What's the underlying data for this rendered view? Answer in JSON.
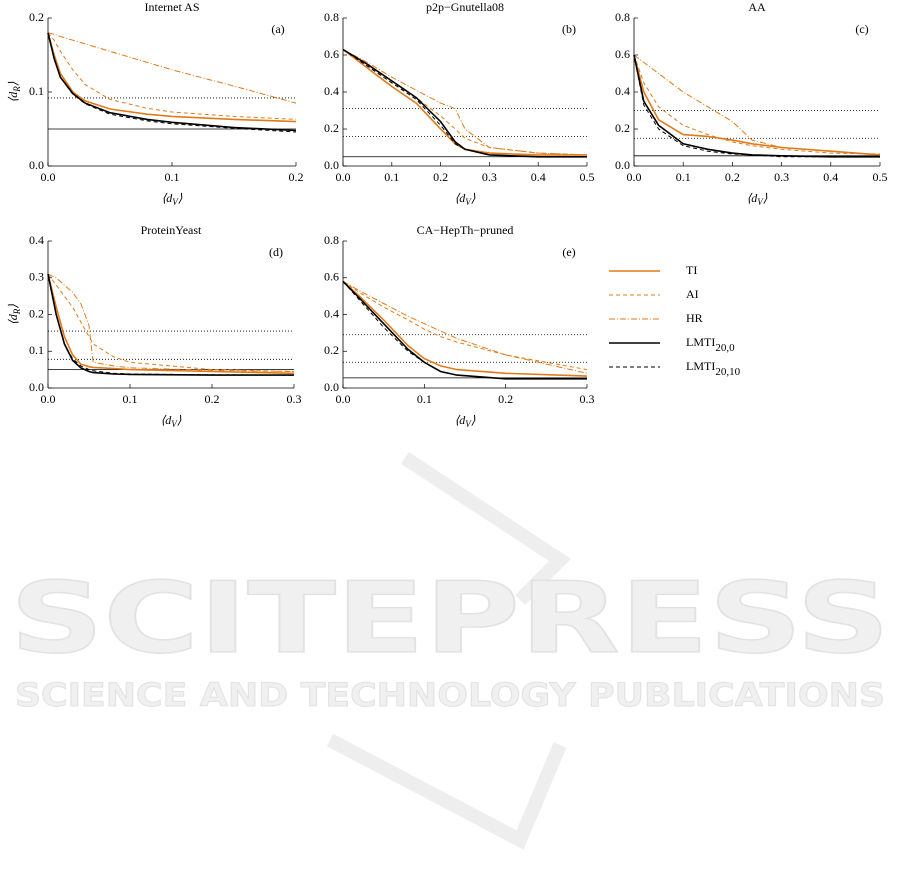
{
  "legend": [
    {
      "name": "TI",
      "color": "#e07b1a",
      "dash": "none",
      "width": 1.6
    },
    {
      "name": "AI",
      "color": "#e07b1a",
      "dash": "4,3",
      "width": 1
    },
    {
      "name": "HR",
      "color": "#e07b1a",
      "dash": "6,2,1,2",
      "width": 1
    },
    {
      "name": "LMTI",
      "name_sub": "20,0",
      "color": "#000000",
      "dash": "none",
      "width": 1.6
    },
    {
      "name": "LMTI",
      "name_sub": "20,10",
      "color": "#000000",
      "dash": "4,3",
      "width": 1
    }
  ],
  "chart_data": [
    {
      "type": "line",
      "title": "Internet AS",
      "panel_label": "(a)",
      "ylabel_pre": "⟨d",
      "ylabel_sub": "R",
      "ylabel_post": "⟩",
      "xlabel_pre": "⟨d",
      "xlabel_sub": "V",
      "xlabel_post": "⟩",
      "xlim": [
        0,
        0.2
      ],
      "xticks": [
        {
          "value": 0,
          "label": "0.0"
        },
        0.1,
        0.2
      ],
      "ylim": [
        0,
        0.2
      ],
      "yticks": [
        {
          "value": 0,
          "label": "0.0"
        },
        0.1,
        0.2
      ],
      "x": [
        0,
        0.005,
        0.01,
        0.02,
        0.03,
        0.05,
        0.08,
        0.1,
        0.15,
        0.2
      ],
      "series": [
        {
          "values": [
            0.18,
            0.15,
            0.125,
            0.1,
            0.088,
            0.077,
            0.07,
            0.067,
            0.063,
            0.06
          ]
        },
        {
          "values": [
            0.18,
            0.17,
            0.155,
            0.13,
            0.11,
            0.09,
            0.078,
            0.073,
            0.067,
            0.063
          ]
        },
        {
          "values": [
            0.18,
            0.178,
            0.175,
            0.17,
            0.165,
            0.155,
            0.14,
            0.13,
            0.108,
            0.085
          ]
        },
        {
          "values": [
            0.18,
            0.145,
            0.12,
            0.098,
            0.085,
            0.072,
            0.063,
            0.059,
            0.052,
            0.048
          ]
        },
        {
          "values": [
            0.18,
            0.145,
            0.12,
            0.097,
            0.084,
            0.07,
            0.061,
            0.057,
            0.051,
            0.046
          ]
        }
      ],
      "hlines": [
        {
          "value": 0.092,
          "style": "dotted"
        },
        {
          "value": 0.05,
          "style": "solid"
        }
      ]
    },
    {
      "type": "line",
      "title": "p2p−Gnutella08",
      "panel_label": "(b)",
      "xlabel_pre": "⟨d",
      "xlabel_sub": "V",
      "xlabel_post": "⟩",
      "xlim": [
        0,
        0.5
      ],
      "xticks": [
        {
          "value": 0,
          "label": "0.0"
        },
        0.1,
        0.2,
        0.3,
        0.4,
        0.5
      ],
      "ylim": [
        0,
        0.8
      ],
      "yticks": [
        {
          "value": 0,
          "label": "0.0"
        },
        0.2,
        0.4,
        0.6,
        0.8
      ],
      "x": [
        0,
        0.05,
        0.1,
        0.15,
        0.2,
        0.23,
        0.25,
        0.3,
        0.4,
        0.5
      ],
      "series": [
        {
          "values": [
            0.63,
            0.53,
            0.43,
            0.34,
            0.2,
            0.12,
            0.09,
            0.07,
            0.06,
            0.06
          ]
        },
        {
          "values": [
            0.63,
            0.54,
            0.45,
            0.37,
            0.27,
            0.2,
            0.15,
            0.1,
            0.07,
            0.06
          ]
        },
        {
          "values": [
            0.63,
            0.56,
            0.48,
            0.41,
            0.34,
            0.31,
            0.2,
            0.1,
            0.07,
            0.06
          ]
        },
        {
          "values": [
            0.63,
            0.55,
            0.46,
            0.37,
            0.24,
            0.13,
            0.09,
            0.06,
            0.05,
            0.05
          ]
        },
        {
          "values": [
            0.63,
            0.54,
            0.45,
            0.36,
            0.22,
            0.12,
            0.09,
            0.06,
            0.05,
            0.05
          ]
        }
      ],
      "hlines": [
        {
          "value": 0.31,
          "style": "dotted"
        },
        {
          "value": 0.16,
          "style": "dotted"
        },
        {
          "value": 0.05,
          "style": "solid"
        }
      ]
    },
    {
      "type": "line",
      "title": "AA",
      "panel_label": "(c)",
      "xlabel_pre": "⟨d",
      "xlabel_sub": "V",
      "xlabel_post": "⟩",
      "xlim": [
        0,
        0.5
      ],
      "xticks": [
        {
          "value": 0,
          "label": "0.0"
        },
        0.1,
        0.2,
        0.3,
        0.4,
        0.5
      ],
      "ylim": [
        0,
        0.8
      ],
      "yticks": [
        {
          "value": 0,
          "label": "0.0"
        },
        0.2,
        0.4,
        0.6,
        0.8
      ],
      "x": [
        0,
        0.02,
        0.05,
        0.1,
        0.15,
        0.2,
        0.24,
        0.3,
        0.4,
        0.5
      ],
      "series": [
        {
          "values": [
            0.6,
            0.4,
            0.25,
            0.17,
            0.16,
            0.14,
            0.12,
            0.1,
            0.08,
            0.06
          ]
        },
        {
          "values": [
            0.6,
            0.45,
            0.32,
            0.22,
            0.17,
            0.13,
            0.11,
            0.09,
            0.07,
            0.065
          ]
        },
        {
          "values": [
            0.6,
            0.56,
            0.5,
            0.4,
            0.32,
            0.24,
            0.14,
            0.1,
            0.08,
            0.06
          ]
        },
        {
          "values": [
            0.6,
            0.35,
            0.22,
            0.12,
            0.09,
            0.07,
            0.06,
            0.055,
            0.05,
            0.05
          ]
        },
        {
          "values": [
            0.6,
            0.33,
            0.2,
            0.11,
            0.08,
            0.065,
            0.06,
            0.05,
            0.05,
            0.05
          ]
        }
      ],
      "hlines": [
        {
          "value": 0.3,
          "style": "dotted"
        },
        {
          "value": 0.15,
          "style": "dotted"
        },
        {
          "value": 0.055,
          "style": "solid"
        }
      ]
    },
    {
      "type": "line",
      "title": "ProteinYeast",
      "panel_label": "(d)",
      "ylabel_pre": "⟨d",
      "ylabel_sub": "R",
      "ylabel_post": "⟩",
      "xlabel_pre": "⟨d",
      "xlabel_sub": "V",
      "xlabel_post": "⟩",
      "xlim": [
        0,
        0.3
      ],
      "xticks": [
        {
          "value": 0,
          "label": "0.0"
        },
        0.1,
        0.2,
        0.3
      ],
      "ylim": [
        0,
        0.4
      ],
      "yticks": [
        {
          "value": 0,
          "label": "0.0"
        },
        0.1,
        0.2,
        0.3,
        0.4
      ],
      "x": [
        0,
        0.01,
        0.02,
        0.03,
        0.04,
        0.05,
        0.055,
        0.08,
        0.1,
        0.2,
        0.3
      ],
      "series": [
        {
          "values": [
            0.31,
            0.22,
            0.14,
            0.09,
            0.065,
            0.058,
            0.056,
            0.053,
            0.05,
            0.045,
            0.04
          ]
        },
        {
          "values": [
            0.31,
            0.28,
            0.25,
            0.22,
            0.18,
            0.14,
            0.12,
            0.085,
            0.07,
            0.05,
            0.045
          ]
        },
        {
          "values": [
            0.31,
            0.3,
            0.28,
            0.26,
            0.23,
            0.17,
            0.07,
            0.06,
            0.055,
            0.048,
            0.045
          ]
        },
        {
          "values": [
            0.31,
            0.2,
            0.12,
            0.075,
            0.055,
            0.045,
            0.042,
            0.038,
            0.037,
            0.035,
            0.035
          ]
        },
        {
          "values": [
            0.31,
            0.2,
            0.12,
            0.08,
            0.06,
            0.05,
            0.047,
            0.04,
            0.038,
            0.036,
            0.035
          ]
        }
      ],
      "hlines": [
        {
          "value": 0.155,
          "style": "dotted"
        },
        {
          "value": 0.078,
          "style": "dotted"
        },
        {
          "value": 0.05,
          "style": "solid"
        }
      ]
    },
    {
      "type": "line",
      "title": "CA−HepTh−pruned",
      "panel_label": "(e)",
      "xlabel_pre": "⟨d",
      "xlabel_sub": "V",
      "xlabel_post": "⟩",
      "xlim": [
        0,
        0.3
      ],
      "xticks": [
        {
          "value": 0,
          "label": "0.0"
        },
        0.1,
        0.2,
        0.3
      ],
      "ylim": [
        0,
        0.8
      ],
      "yticks": [
        {
          "value": 0,
          "label": "0.0"
        },
        0.2,
        0.4,
        0.6,
        0.8
      ],
      "x": [
        0,
        0.02,
        0.05,
        0.08,
        0.1,
        0.12,
        0.14,
        0.2,
        0.3
      ],
      "series": [
        {
          "values": [
            0.58,
            0.5,
            0.37,
            0.23,
            0.16,
            0.12,
            0.1,
            0.08,
            0.065
          ]
        },
        {
          "values": [
            0.58,
            0.52,
            0.44,
            0.37,
            0.32,
            0.28,
            0.25,
            0.18,
            0.1
          ]
        },
        {
          "values": [
            0.58,
            0.53,
            0.46,
            0.39,
            0.35,
            0.31,
            0.27,
            0.18,
            0.08
          ]
        },
        {
          "values": [
            0.58,
            0.49,
            0.35,
            0.21,
            0.14,
            0.09,
            0.07,
            0.05,
            0.05
          ]
        },
        {
          "values": [
            0.58,
            0.48,
            0.33,
            0.2,
            0.14,
            0.09,
            0.07,
            0.05,
            0.05
          ]
        }
      ],
      "hlines": [
        {
          "value": 0.29,
          "style": "dotted"
        },
        {
          "value": 0.14,
          "style": "dotted"
        },
        {
          "value": 0.055,
          "style": "solid"
        }
      ]
    }
  ],
  "watermark": {
    "title": "SCITEPRESS",
    "subtitle": "SCIENCE AND TECHNOLOGY PUBLICATIONS"
  }
}
